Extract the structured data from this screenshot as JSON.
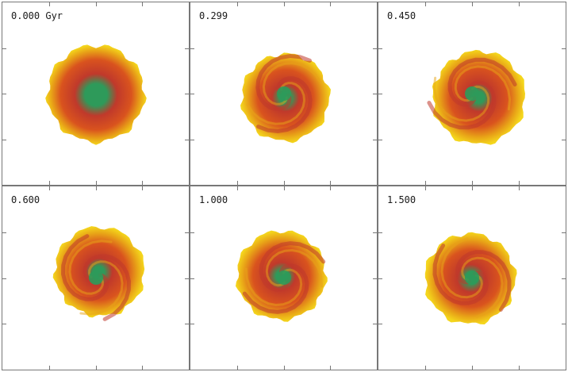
{
  "panels": [
    {
      "label": "0.000 Gyr",
      "stage": "initial"
    },
    {
      "label": "0.299",
      "stage": "spiral"
    },
    {
      "label": "0.450",
      "stage": "spiral"
    },
    {
      "label": "0.600",
      "stage": "spiral"
    },
    {
      "label": "1.000",
      "stage": "spiral"
    },
    {
      "label": "1.500",
      "stage": "spiral"
    }
  ],
  "colors": {
    "core": "#2e9a5a",
    "inner": "#c0392b",
    "mid": "#d9531e",
    "outer": "#e8a317",
    "rim": "#f4d61c",
    "frame": "#777777"
  }
}
